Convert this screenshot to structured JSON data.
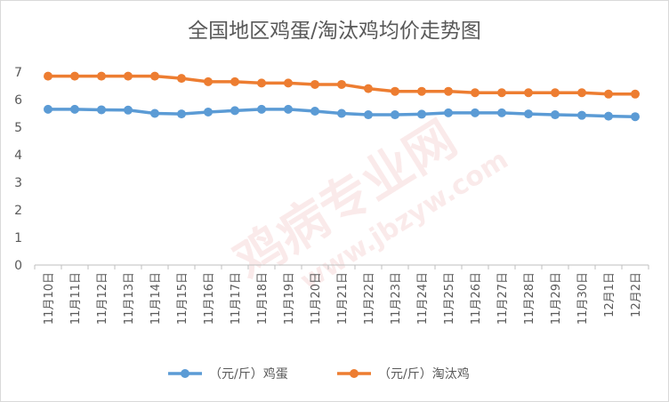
{
  "chart_data": {
    "type": "line",
    "title": "全国地区鸡蛋/淘汰鸡均价走势图",
    "categories": [
      "11月10日",
      "11月11日",
      "11月12日",
      "11月13日",
      "11月14日",
      "11月15日",
      "11月16日",
      "11月17日",
      "11月18日",
      "11月19日",
      "11月20日",
      "11月21日",
      "11月22日",
      "11月23日",
      "11月24日",
      "11月25日",
      "11月26日",
      "11月27日",
      "11月28日",
      "11月29日",
      "11月30日",
      "12月1日",
      "12月2日"
    ],
    "ylim": [
      0,
      7
    ],
    "yticks": [
      0,
      1,
      2,
      3,
      4,
      5,
      6,
      7
    ],
    "grid": false,
    "legend_position": "bottom",
    "series": [
      {
        "name": "（元/斤）鸡蛋",
        "color": "#5B9BD5",
        "values": [
          5.65,
          5.65,
          5.63,
          5.62,
          5.5,
          5.48,
          5.55,
          5.6,
          5.65,
          5.65,
          5.58,
          5.5,
          5.45,
          5.45,
          5.47,
          5.52,
          5.52,
          5.52,
          5.48,
          5.45,
          5.43,
          5.4,
          5.38
        ]
      },
      {
        "name": "（元/斤）淘汰鸡",
        "color": "#ED7D31",
        "values": [
          6.85,
          6.85,
          6.85,
          6.85,
          6.85,
          6.77,
          6.65,
          6.65,
          6.6,
          6.6,
          6.55,
          6.55,
          6.4,
          6.3,
          6.3,
          6.3,
          6.25,
          6.25,
          6.25,
          6.25,
          6.25,
          6.2,
          6.2
        ]
      }
    ]
  },
  "watermark": {
    "line1": "鸡病专业网",
    "line2": "www.jbzyw.com"
  }
}
